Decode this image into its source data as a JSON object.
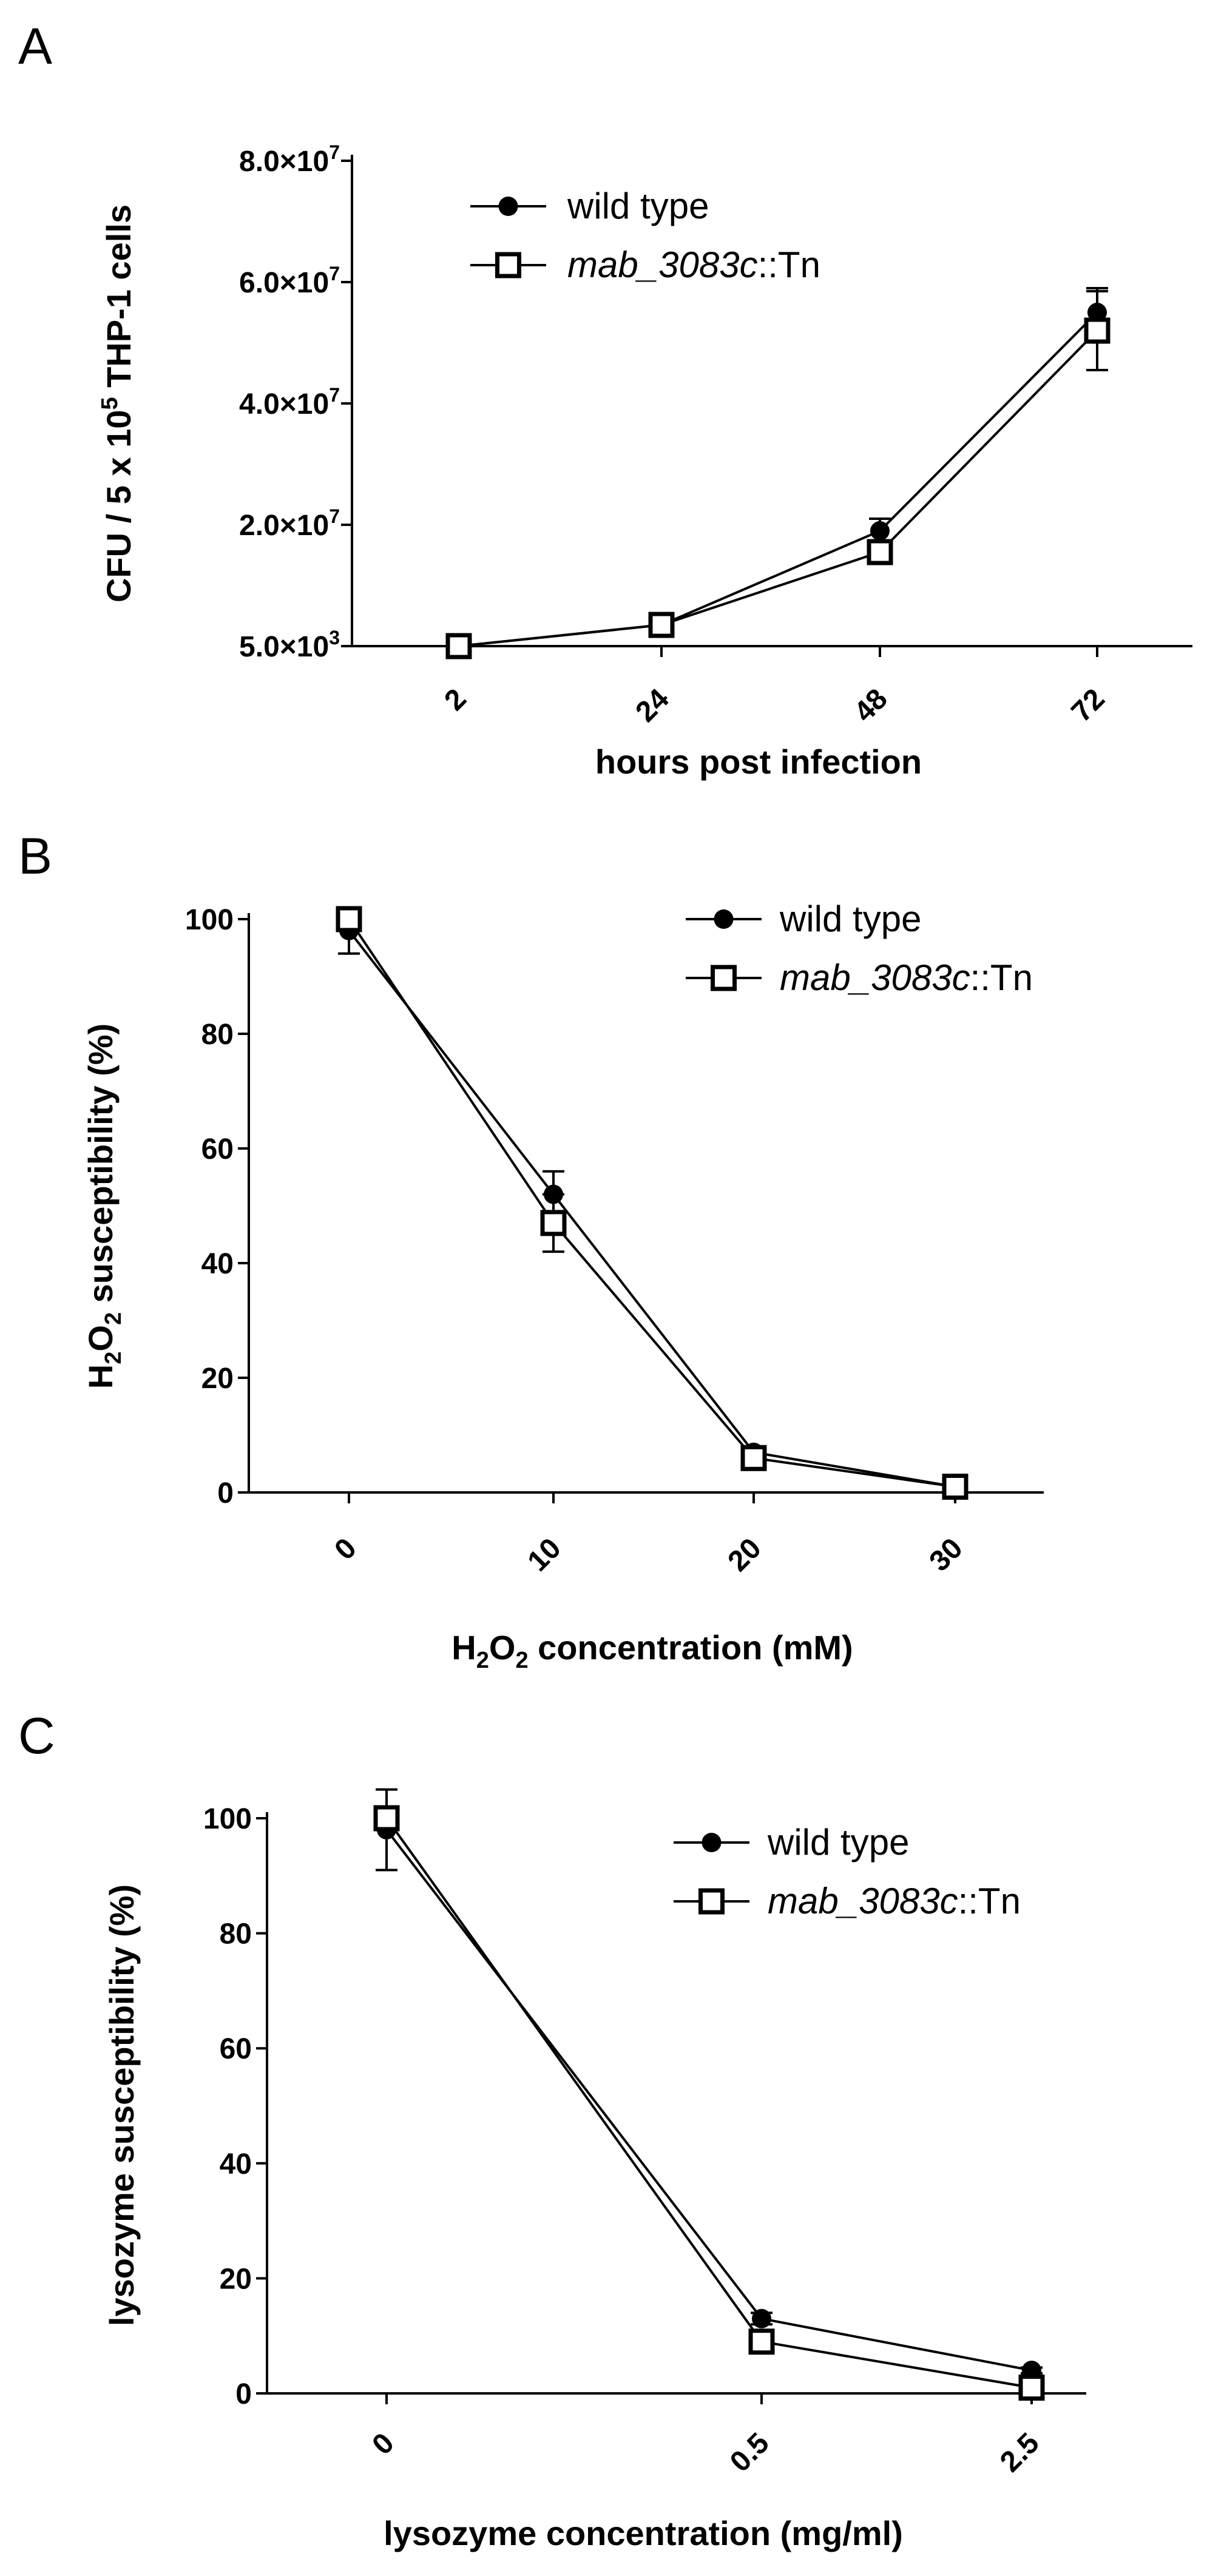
{
  "chart_data": [
    {
      "type": "line",
      "panel": "A",
      "xlabel": "hours post infection",
      "ylabel_parts": {
        "base": "CFU / 5 x 10",
        "sup": "5",
        "tail": " THP-1 cells"
      },
      "categories": [
        "2",
        "24",
        "48",
        "72"
      ],
      "yticks": [
        {
          "value": 5000,
          "label": "5.0×10",
          "exp": "3"
        },
        {
          "value": 20000000,
          "label": "2.0×10",
          "exp": "7"
        },
        {
          "value": 40000000,
          "label": "4.0×10",
          "exp": "7"
        },
        {
          "value": 60000000,
          "label": "6.0×10",
          "exp": "7"
        },
        {
          "value": 80000000,
          "label": "8.0×10",
          "exp": "7"
        }
      ],
      "ylim": [
        5000,
        80000000
      ],
      "legend_position": "top-left",
      "series": [
        {
          "name": "wild type",
          "marker": "filled-circle",
          "values": [
            5000,
            3500000,
            19000000,
            55000000
          ],
          "errors": [
            0,
            500000,
            2000000,
            4000000
          ]
        },
        {
          "name_italic": "mab_3083c",
          "name_rest": "::Tn",
          "marker": "open-square",
          "values": [
            5000,
            3500000,
            15500000,
            52000000
          ],
          "errors": [
            0,
            500000,
            1500000,
            6500000
          ]
        }
      ]
    },
    {
      "type": "line",
      "panel": "B",
      "xlabel_parts": {
        "pre": "H",
        "sub1": "2",
        "mid": "O",
        "sub2": "2",
        "post": " concentration (mM)"
      },
      "ylabel_parts": {
        "pre": "H",
        "sub1": "2",
        "mid": "O",
        "sub2": "2",
        "post": " susceptibility (%)"
      },
      "categories": [
        "0",
        "10",
        "20",
        "30"
      ],
      "yticks": [
        {
          "value": 0,
          "label": "0"
        },
        {
          "value": 20,
          "label": "20"
        },
        {
          "value": 40,
          "label": "40"
        },
        {
          "value": 60,
          "label": "60"
        },
        {
          "value": 80,
          "label": "80"
        },
        {
          "value": 100,
          "label": "100"
        }
      ],
      "ylim": [
        0,
        100
      ],
      "legend_position": "top-right",
      "series": [
        {
          "name": "wild type",
          "marker": "filled-circle",
          "values": [
            98,
            52,
            7,
            1
          ],
          "errors": [
            4,
            4,
            1,
            0.5
          ]
        },
        {
          "name_italic": "mab_3083c",
          "name_rest": "::Tn",
          "marker": "open-square",
          "values": [
            100,
            47,
            6,
            1
          ],
          "errors": [
            0,
            5,
            1,
            0.5
          ]
        }
      ]
    },
    {
      "type": "line",
      "panel": "C",
      "xlabel": "lysozyme concentration (mg/ml)",
      "ylabel": "lysozyme susceptibility (%)",
      "categories": [
        "0",
        "0.5",
        "2.5"
      ],
      "yticks": [
        {
          "value": 0,
          "label": "0"
        },
        {
          "value": 20,
          "label": "20"
        },
        {
          "value": 40,
          "label": "40"
        },
        {
          "value": 60,
          "label": "60"
        },
        {
          "value": 80,
          "label": "80"
        },
        {
          "value": 100,
          "label": "100"
        }
      ],
      "ylim": [
        0,
        100
      ],
      "legend_position": "top-right",
      "series": [
        {
          "name": "wild type",
          "marker": "filled-circle",
          "values": [
            98,
            13,
            4
          ],
          "errors": [
            7,
            1,
            0.5
          ]
        },
        {
          "name_italic": "mab_3083c",
          "name_rest": "::Tn",
          "marker": "open-square",
          "values": [
            100,
            9,
            1
          ],
          "errors": [
            0,
            1,
            0.5
          ]
        }
      ]
    }
  ]
}
